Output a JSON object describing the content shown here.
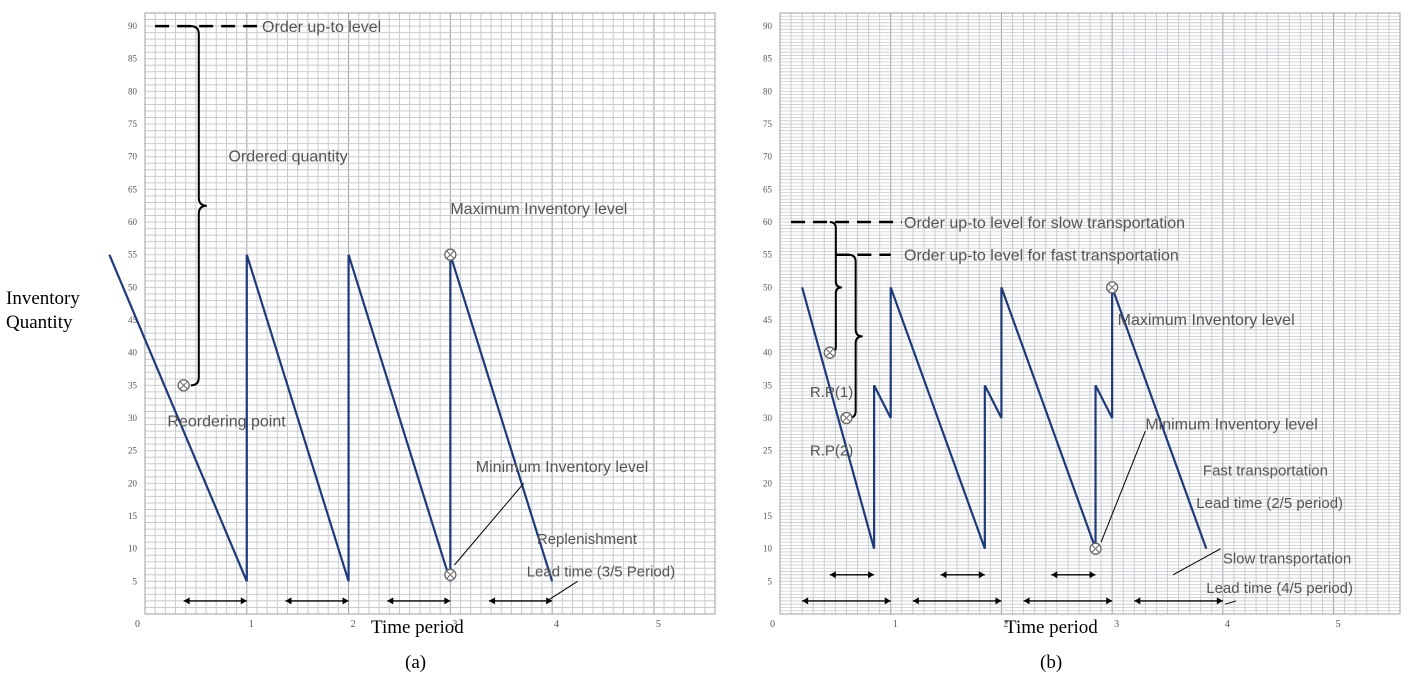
{
  "y_axis_label_lines": [
    "Inventory",
    "Quantity"
  ],
  "colors": {
    "series": "#1f3a7a",
    "grid": "#9aa0a6",
    "grid_minor": "#c8ccd0",
    "text": "#000000",
    "annot": "#555555"
  },
  "chart_data": [
    {
      "type": "line",
      "panel_label": "(a)",
      "xlabel": "Time period",
      "ylabel": "Inventory Quantity",
      "xlim": [
        0,
        5.6
      ],
      "ylim": [
        0,
        92
      ],
      "x_ticks": [
        0,
        1,
        2,
        3,
        4,
        5
      ],
      "y_ticks": [
        5,
        10,
        15,
        20,
        25,
        30,
        35,
        40,
        45,
        50,
        55,
        60,
        65,
        70,
        75,
        80,
        85,
        90
      ],
      "grid": true,
      "series": [
        {
          "x": [
            -0.35,
            1.0,
            1.0,
            2.0,
            2.0,
            3.0,
            3.0,
            4.0
          ],
          "y": [
            55,
            5,
            55,
            5,
            55,
            5,
            55,
            5
          ]
        }
      ],
      "markers": [
        {
          "x": 0.38,
          "y": 35
        },
        {
          "x": 3.0,
          "y": 55
        },
        {
          "x": 3.0,
          "y": 6
        }
      ],
      "lead_time_arrows": [
        [
          0.38,
          1.0
        ],
        [
          1.38,
          2.0
        ],
        [
          2.38,
          3.0
        ],
        [
          3.38,
          4.0
        ]
      ],
      "annotations": {
        "order_up_to": "Order up-to level",
        "ordered_qty": "Ordered quantity",
        "max_level": "Maximum Inventory level",
        "reorder": "Reordering point",
        "min_level": "Minimum Inventory level",
        "replenish": "Replenishment",
        "lead_time": "Lead time (3/5 Period)"
      }
    },
    {
      "type": "line",
      "panel_label": "(b)",
      "xlabel": "Time period",
      "xlim": [
        0,
        5.6
      ],
      "ylim": [
        0,
        92
      ],
      "x_ticks": [
        0,
        1,
        2,
        3,
        4,
        5
      ],
      "y_ticks": [
        5,
        10,
        15,
        20,
        25,
        30,
        35,
        40,
        45,
        50,
        55,
        60,
        65,
        70,
        75,
        80,
        85,
        90
      ],
      "grid": true,
      "series": [
        {
          "x": [
            0.2,
            0.85,
            0.85,
            1.0,
            1.0,
            1.85,
            1.85,
            2.0,
            2.0,
            2.85,
            2.85,
            3.0,
            3.0,
            3.85
          ],
          "y": [
            50,
            10,
            35,
            30,
            50,
            10,
            35,
            30,
            50,
            10,
            35,
            30,
            50,
            10
          ]
        }
      ],
      "markers": [
        {
          "x": 0.45,
          "y": 40
        },
        {
          "x": 0.6,
          "y": 30
        },
        {
          "x": 2.85,
          "y": 10
        },
        {
          "x": 3.0,
          "y": 50
        }
      ],
      "fast_arrows": [
        [
          0.45,
          0.85
        ],
        [
          1.45,
          1.85
        ],
        [
          2.45,
          2.85
        ]
      ],
      "slow_arrows": [
        [
          0.2,
          1.0
        ],
        [
          1.2,
          2.0
        ],
        [
          2.2,
          3.0
        ],
        [
          3.2,
          4.0
        ]
      ],
      "annotations": {
        "up_to_slow": "Order up-to level for slow transportation",
        "up_to_fast": "Order up-to level for fast transportation",
        "max_level": "Maximum Inventory level",
        "rp1": "R.P(1)",
        "rp2": "R.P(2)",
        "min_level": "Minimum Inventory level",
        "fast": "Fast transportation",
        "fast_lead": "Lead time (2/5 period)",
        "slow": "Slow transportation",
        "slow_lead": "Lead time (4/5 period)"
      }
    }
  ]
}
